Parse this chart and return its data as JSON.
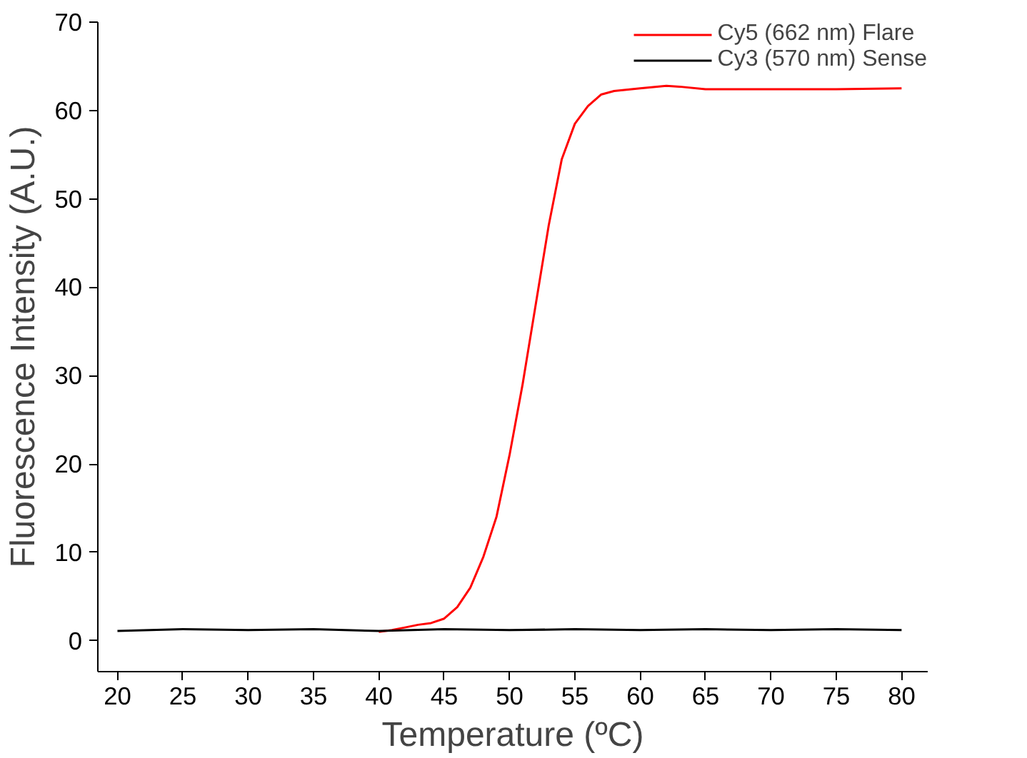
{
  "chart_data": {
    "type": "line",
    "xlabel": "Temperature (ºC)",
    "ylabel": "Fluorescence Intensity (A.U.)",
    "xlim": [
      18.5,
      82
    ],
    "ylim": [
      -3.5,
      70
    ],
    "xticks": [
      20,
      25,
      30,
      35,
      40,
      45,
      50,
      55,
      60,
      65,
      70,
      75,
      80
    ],
    "yticks": [
      0,
      10,
      20,
      30,
      40,
      50,
      60,
      70
    ],
    "grid": false,
    "legend": "top right",
    "line_style": "solid",
    "marker": "none",
    "series": [
      {
        "name": "Cy5 (662 nm) Flare",
        "color": "#ff0000",
        "x": [
          40,
          41,
          42,
          43,
          44,
          45,
          46,
          47,
          48,
          49,
          50,
          51,
          52,
          53,
          54,
          55,
          56,
          57,
          58,
          60,
          62,
          63,
          65,
          70,
          75,
          80
        ],
        "values": [
          1.0,
          1.2,
          1.5,
          1.8,
          2.0,
          2.5,
          3.8,
          6,
          9.5,
          14,
          21,
          29,
          38,
          47,
          54.5,
          58.5,
          60.5,
          61.8,
          62.2,
          62.5,
          62.8,
          62.7,
          62.4,
          62.4,
          62.4,
          62.5
        ]
      },
      {
        "name": "Cy3 (570 nm) Sense",
        "color": "#000000",
        "x": [
          20,
          25,
          30,
          35,
          40,
          45,
          50,
          55,
          60,
          65,
          70,
          75,
          80
        ],
        "values": [
          1.1,
          1.3,
          1.2,
          1.3,
          1.1,
          1.3,
          1.2,
          1.3,
          1.2,
          1.3,
          1.2,
          1.3,
          1.2
        ]
      }
    ]
  }
}
